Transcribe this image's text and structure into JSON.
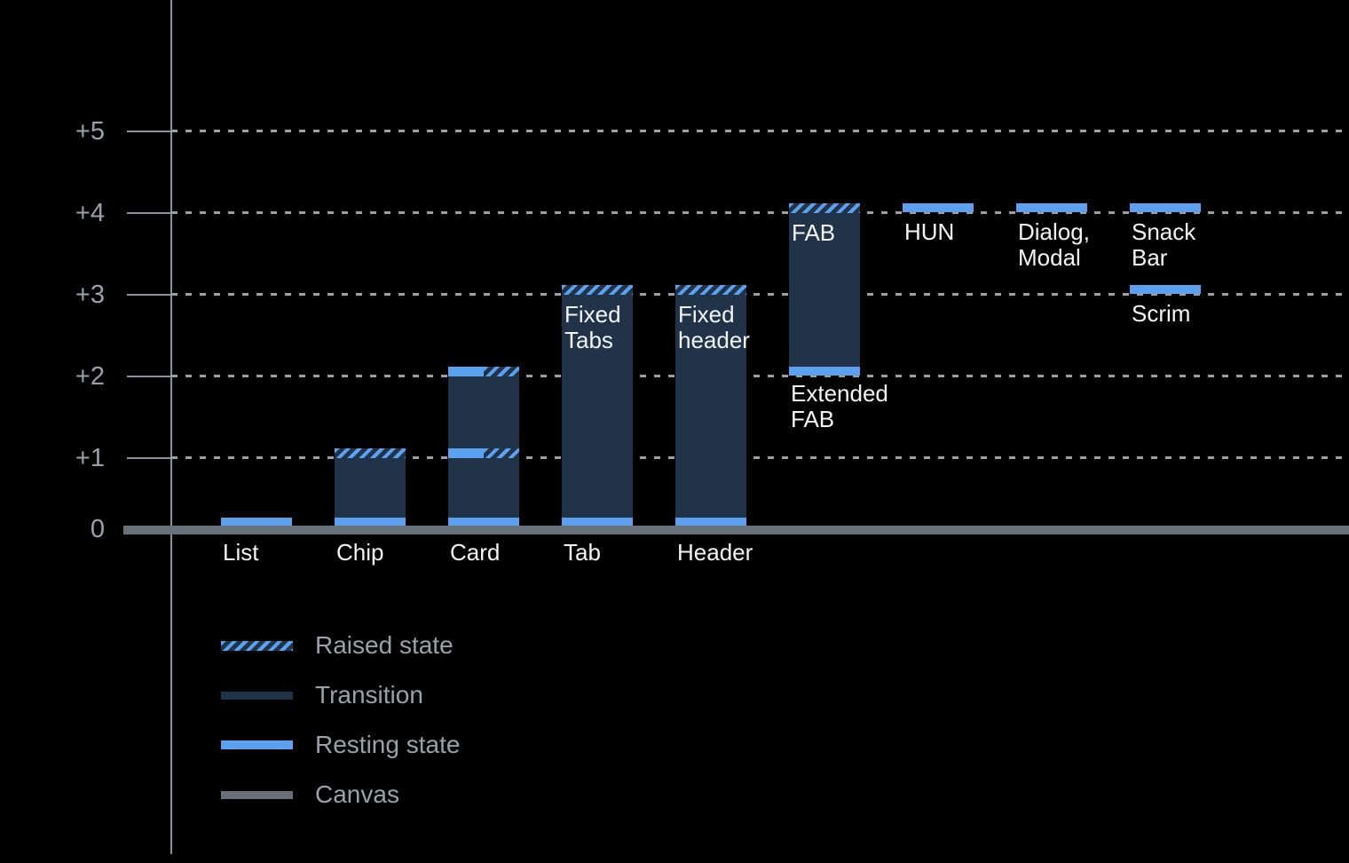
{
  "colors": {
    "background": "#000000",
    "transition": "#203349",
    "resting": "#5ba1f0",
    "canvas": "#68707a",
    "axis": "#8b929a",
    "gridline": "#9aa0a6",
    "tick_label": "#9aa1a8",
    "component_label": "#f2f4f5"
  },
  "chart_data": {
    "type": "bar",
    "title": "",
    "xlabel": "",
    "ylabel": "",
    "ylim": [
      0,
      5
    ],
    "grid": "dotted horizontal lines at each elevation level",
    "axis": {
      "yticks": [
        {
          "label": "+5",
          "value": 5
        },
        {
          "label": "+4",
          "value": 4
        },
        {
          "label": "+3",
          "value": 3
        },
        {
          "label": "+2",
          "value": 2
        },
        {
          "label": "+1",
          "value": 1
        },
        {
          "label": "0",
          "value": 0
        }
      ]
    },
    "items": [
      {
        "name": "list",
        "column": 0,
        "bar": {
          "resting_at": [
            0
          ]
        },
        "label": {
          "lines": [
            "List"
          ],
          "placement": "baseline"
        }
      },
      {
        "name": "chip",
        "column": 1,
        "bar": {
          "raised_at": [
            1
          ],
          "resting_at": [
            0
          ],
          "transition": true
        },
        "label": {
          "lines": [
            "Chip"
          ],
          "placement": "baseline"
        }
      },
      {
        "name": "card",
        "column": 2,
        "bar": {
          "split_at": [
            2,
            1
          ],
          "resting_at": [
            0
          ],
          "transition": true
        },
        "label": {
          "lines": [
            "Card"
          ],
          "placement": "baseline"
        }
      },
      {
        "name": "tab",
        "column": 3,
        "bar": {
          "raised_at": [
            3
          ],
          "resting_at": [
            0
          ],
          "transition": true
        },
        "label": {
          "lines": [
            "Tab"
          ],
          "placement": "baseline"
        },
        "inner_label": {
          "lines": [
            "Fixed",
            "Tabs"
          ]
        }
      },
      {
        "name": "header",
        "column": 4,
        "bar": {
          "raised_at": [
            3
          ],
          "resting_at": [
            0
          ],
          "transition": true
        },
        "label": {
          "lines": [
            "Header"
          ],
          "placement": "baseline"
        },
        "inner_label": {
          "lines": [
            "Fixed",
            "header"
          ]
        }
      },
      {
        "name": "fab",
        "column": 5,
        "bar": {
          "raised_at": [
            4
          ],
          "resting_at": [
            2
          ],
          "transition": true
        },
        "inner_label": {
          "lines": [
            "FAB"
          ]
        },
        "below_label": {
          "lines": [
            "Extended",
            "FAB"
          ]
        }
      },
      {
        "name": "hun",
        "column": 6,
        "bar": {
          "resting_at": [
            4
          ]
        },
        "label": {
          "lines": [
            "HUN"
          ],
          "placement": "below"
        }
      },
      {
        "name": "dialog-modal",
        "column": 7,
        "bar": {
          "resting_at": [
            4
          ]
        },
        "label": {
          "lines": [
            "Dialog,",
            "Modal"
          ],
          "placement": "below"
        }
      },
      {
        "name": "snack-bar",
        "column": 8,
        "bar": {
          "resting_at": [
            4
          ]
        },
        "label": {
          "lines": [
            "Snack Bar"
          ],
          "placement": "below"
        }
      },
      {
        "name": "scrim",
        "column": 8,
        "bar": {
          "resting_at": [
            3
          ]
        },
        "label": {
          "lines": [
            "Scrim"
          ],
          "placement": "below"
        }
      }
    ],
    "legend": {
      "position": "bottom-left",
      "items": [
        {
          "label": "Raised state",
          "swatch": "raised"
        },
        {
          "label": "Transition",
          "swatch": "transition"
        },
        {
          "label": "Resting state",
          "swatch": "resting"
        },
        {
          "label": "Canvas",
          "swatch": "canvas"
        }
      ]
    }
  }
}
